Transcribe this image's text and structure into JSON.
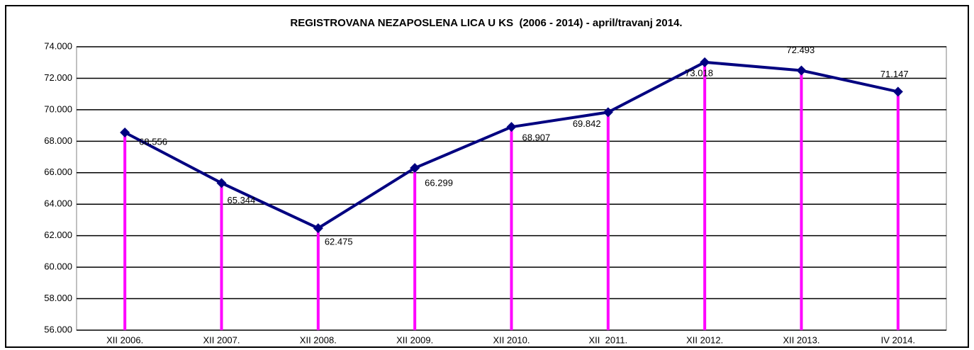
{
  "chart_data": {
    "type": "line",
    "title": "REGISTROVANA NEZAPOSLENA LICA U KS  (2006 - 2014) - april/travanj 2014.",
    "categories": [
      "XII 2006.",
      "XII 2007.",
      "XII 2008.",
      "XII 2009.",
      "XII 2010.",
      "XII  2011.",
      "XII 2012.",
      "XII 2013.",
      "IV 2014."
    ],
    "series": [
      {
        "name": null,
        "color": "#000080",
        "drop_line_color": "#ff00ff",
        "values": [
          68556,
          65344,
          62475,
          66299,
          68907,
          69842,
          73018,
          72493,
          71147
        ],
        "value_labels": [
          "68.556",
          "65.344",
          "62.475",
          "66.299",
          "68.907",
          "69.842",
          "73.018",
          "72.493",
          "71.147"
        ]
      }
    ],
    "ylim": [
      56000,
      74000
    ],
    "yticks": [
      {
        "value": 56000,
        "label": "56.000"
      },
      {
        "value": 58000,
        "label": "58.000"
      },
      {
        "value": 60000,
        "label": "60.000"
      },
      {
        "value": 62000,
        "label": "62.000"
      },
      {
        "value": 64000,
        "label": "64.000"
      },
      {
        "value": 66000,
        "label": "66.000"
      },
      {
        "value": 68000,
        "label": "68.000"
      },
      {
        "value": 70000,
        "label": "70.000"
      },
      {
        "value": 72000,
        "label": "72.000"
      },
      {
        "value": 74000,
        "label": "74.000"
      }
    ],
    "grid": true
  }
}
